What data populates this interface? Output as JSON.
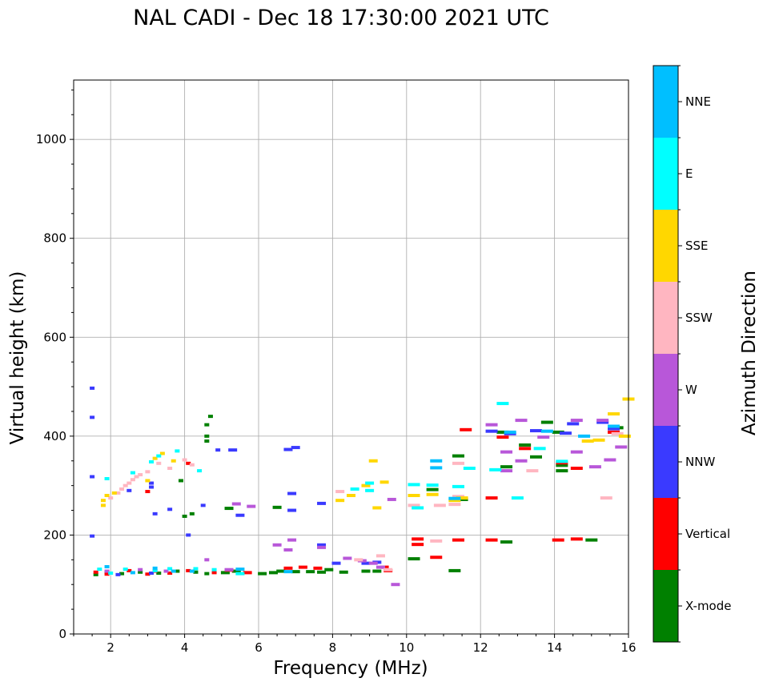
{
  "chart_data": {
    "type": "scatter",
    "title": "NAL CADI - Dec 18 17:30:00 2021 UTC",
    "xlabel": "Frequency (MHz)",
    "ylabel": "Virtual height (km)",
    "xlim": [
      1,
      16
    ],
    "ylim": [
      0,
      1120
    ],
    "xticks": [
      2,
      4,
      6,
      8,
      10,
      12,
      14,
      16
    ],
    "yticks": [
      0,
      200,
      400,
      600,
      800,
      1000
    ],
    "grid": true,
    "colorbar": {
      "label": "Azimuth Direction",
      "categories": [
        "X-mode",
        "Vertical",
        "NNW",
        "W",
        "SSW",
        "SSE",
        "E",
        "NNE"
      ],
      "colors": [
        "#008000",
        "#ff0000",
        "#3a3aff",
        "#b857d9",
        "#ffb6c1",
        "#ffd700",
        "#00ffff",
        "#00bfff"
      ]
    },
    "series": [
      {
        "name": "X-mode",
        "points": [
          [
            1.6,
            120
          ],
          [
            1.9,
            125
          ],
          [
            2.3,
            122
          ],
          [
            2.8,
            125
          ],
          [
            3.3,
            123
          ],
          [
            3.8,
            127
          ],
          [
            4.3,
            125
          ],
          [
            4.6,
            122
          ],
          [
            5.1,
            124
          ],
          [
            5.4,
            127
          ],
          [
            6.1,
            122
          ],
          [
            6.4,
            124
          ],
          [
            6.6,
            127
          ],
          [
            7.0,
            126
          ],
          [
            7.4,
            126
          ],
          [
            7.7,
            125
          ],
          [
            7.9,
            130
          ],
          [
            8.3,
            125
          ],
          [
            8.9,
            127
          ],
          [
            9.2,
            127
          ],
          [
            10.2,
            152
          ],
          [
            4.6,
            400
          ],
          [
            4.6,
            390
          ],
          [
            4.7,
            440
          ],
          [
            4.6,
            423
          ],
          [
            3.9,
            310
          ],
          [
            4.2,
            243
          ],
          [
            4.0,
            238
          ],
          [
            5.2,
            254
          ],
          [
            6.5,
            256
          ],
          [
            10.7,
            292
          ],
          [
            11.3,
            128
          ],
          [
            11.4,
            360
          ],
          [
            11.5,
            272
          ],
          [
            12.6,
            408
          ],
          [
            12.7,
            186
          ],
          [
            12.7,
            338
          ],
          [
            13.2,
            382
          ],
          [
            13.5,
            358
          ],
          [
            13.8,
            428
          ],
          [
            14.1,
            408
          ],
          [
            14.2,
            330
          ],
          [
            14.2,
            341
          ],
          [
            15.0,
            190
          ],
          [
            15.7,
            417
          ]
        ]
      },
      {
        "name": "Vertical",
        "points": [
          [
            1.6,
            125
          ],
          [
            1.9,
            121
          ],
          [
            2.5,
            128
          ],
          [
            3.0,
            121
          ],
          [
            3.2,
            127
          ],
          [
            3.6,
            123
          ],
          [
            4.1,
            128
          ],
          [
            4.8,
            124
          ],
          [
            5.2,
            129
          ],
          [
            5.7,
            124
          ],
          [
            6.8,
            133
          ],
          [
            7.2,
            135
          ],
          [
            7.6,
            133
          ],
          [
            9.4,
            135
          ],
          [
            9.5,
            128
          ],
          [
            10.3,
            192
          ],
          [
            10.3,
            181
          ],
          [
            10.8,
            155
          ],
          [
            11.4,
            190
          ],
          [
            11.6,
            413
          ],
          [
            12.3,
            190
          ],
          [
            12.3,
            275
          ],
          [
            12.6,
            398
          ],
          [
            13.2,
            375
          ],
          [
            14.1,
            190
          ],
          [
            14.2,
            346
          ],
          [
            14.6,
            335
          ],
          [
            14.6,
            192
          ],
          [
            15.6,
            408
          ],
          [
            3.0,
            288
          ],
          [
            4.1,
            345
          ]
        ]
      },
      {
        "name": "NNW",
        "points": [
          [
            1.5,
            497
          ],
          [
            1.5,
            438
          ],
          [
            1.5,
            318
          ],
          [
            1.5,
            198
          ],
          [
            2.2,
            120
          ],
          [
            3.1,
            123
          ],
          [
            4.1,
            200
          ],
          [
            4.5,
            260
          ],
          [
            4.9,
            372
          ],
          [
            5.3,
            372
          ],
          [
            5.5,
            240
          ],
          [
            6.8,
            373
          ],
          [
            7.0,
            377
          ],
          [
            6.9,
            284
          ],
          [
            6.9,
            250
          ],
          [
            7.7,
            264
          ],
          [
            7.7,
            180
          ],
          [
            8.1,
            143
          ],
          [
            8.9,
            143
          ],
          [
            9.2,
            145
          ],
          [
            12.3,
            410
          ],
          [
            12.8,
            405
          ],
          [
            13.5,
            411
          ],
          [
            14.3,
            406
          ],
          [
            14.5,
            425
          ],
          [
            15.3,
            428
          ],
          [
            15.6,
            415
          ],
          [
            2.5,
            290
          ],
          [
            3.1,
            297
          ],
          [
            3.6,
            252
          ],
          [
            3.2,
            243
          ],
          [
            3.1,
            305
          ]
        ]
      },
      {
        "name": "W",
        "points": [
          [
            1.9,
            127
          ],
          [
            2.8,
            130
          ],
          [
            3.5,
            127
          ],
          [
            4.6,
            150
          ],
          [
            5.2,
            130
          ],
          [
            5.4,
            263
          ],
          [
            6.5,
            180
          ],
          [
            6.8,
            170
          ],
          [
            6.9,
            190
          ],
          [
            7.7,
            175
          ],
          [
            8.4,
            153
          ],
          [
            8.8,
            148
          ],
          [
            9.1,
            143
          ],
          [
            9.3,
            135
          ],
          [
            9.6,
            272
          ],
          [
            9.7,
            100
          ],
          [
            12.3,
            423
          ],
          [
            12.7,
            368
          ],
          [
            12.7,
            330
          ],
          [
            13.1,
            350
          ],
          [
            13.1,
            432
          ],
          [
            13.7,
            398
          ],
          [
            14.6,
            368
          ],
          [
            14.6,
            432
          ],
          [
            15.1,
            338
          ],
          [
            15.3,
            432
          ],
          [
            15.5,
            352
          ],
          [
            15.8,
            378
          ],
          [
            5.8,
            258
          ]
        ]
      },
      {
        "name": "SSW",
        "points": [
          [
            2.0,
            275
          ],
          [
            2.2,
            285
          ],
          [
            2.3,
            293
          ],
          [
            2.4,
            300
          ],
          [
            2.5,
            305
          ],
          [
            2.6,
            312
          ],
          [
            2.7,
            318
          ],
          [
            2.8,
            322
          ],
          [
            3.0,
            328
          ],
          [
            3.3,
            345
          ],
          [
            3.6,
            335
          ],
          [
            4.0,
            352
          ],
          [
            4.2,
            342
          ],
          [
            8.2,
            288
          ],
          [
            8.7,
            150
          ],
          [
            9.3,
            158
          ],
          [
            9.5,
            130
          ],
          [
            10.2,
            260
          ],
          [
            10.8,
            188
          ],
          [
            10.9,
            260
          ],
          [
            11.3,
            262
          ],
          [
            11.4,
            278
          ],
          [
            11.4,
            345
          ],
          [
            13.4,
            330
          ],
          [
            15.4,
            275
          ],
          [
            15.7,
            405
          ]
        ]
      },
      {
        "name": "SSE",
        "points": [
          [
            1.8,
            260
          ],
          [
            1.8,
            270
          ],
          [
            1.9,
            280
          ],
          [
            2.1,
            285
          ],
          [
            3.0,
            310
          ],
          [
            3.2,
            355
          ],
          [
            3.4,
            365
          ],
          [
            3.7,
            350
          ],
          [
            8.2,
            270
          ],
          [
            8.5,
            280
          ],
          [
            8.9,
            300
          ],
          [
            9.1,
            350
          ],
          [
            9.2,
            255
          ],
          [
            9.4,
            307
          ],
          [
            10.2,
            280
          ],
          [
            10.7,
            282
          ],
          [
            11.3,
            270
          ],
          [
            11.5,
            275
          ],
          [
            14.9,
            390
          ],
          [
            15.2,
            392
          ],
          [
            15.6,
            445
          ],
          [
            16.0,
            475
          ],
          [
            15.9,
            400
          ]
        ]
      },
      {
        "name": "E",
        "points": [
          [
            1.7,
            131
          ],
          [
            2.0,
            123
          ],
          [
            2.4,
            131
          ],
          [
            3.2,
            128
          ],
          [
            3.6,
            132
          ],
          [
            4.3,
            132
          ],
          [
            4.8,
            130
          ],
          [
            5.5,
            122
          ],
          [
            1.9,
            314
          ],
          [
            2.6,
            326
          ],
          [
            3.1,
            348
          ],
          [
            3.3,
            360
          ],
          [
            3.8,
            370
          ],
          [
            4.4,
            330
          ],
          [
            8.6,
            293
          ],
          [
            9.0,
            290
          ],
          [
            9.0,
            305
          ],
          [
            10.2,
            302
          ],
          [
            10.3,
            255
          ],
          [
            10.7,
            301
          ],
          [
            11.4,
            298
          ],
          [
            11.7,
            335
          ],
          [
            12.4,
            332
          ],
          [
            12.6,
            466
          ],
          [
            13.0,
            275
          ],
          [
            13.6,
            375
          ],
          [
            14.2,
            349
          ]
        ]
      },
      {
        "name": "NNE",
        "points": [
          [
            1.9,
            136
          ],
          [
            2.6,
            124
          ],
          [
            3.2,
            133
          ],
          [
            3.7,
            127
          ],
          [
            4.2,
            127
          ],
          [
            5.5,
            131
          ],
          [
            6.8,
            126
          ],
          [
            10.8,
            350
          ],
          [
            10.8,
            336
          ],
          [
            11.3,
            274
          ],
          [
            12.8,
            408
          ],
          [
            13.8,
            410
          ],
          [
            14.8,
            400
          ],
          [
            15.6,
            420
          ]
        ]
      }
    ]
  }
}
